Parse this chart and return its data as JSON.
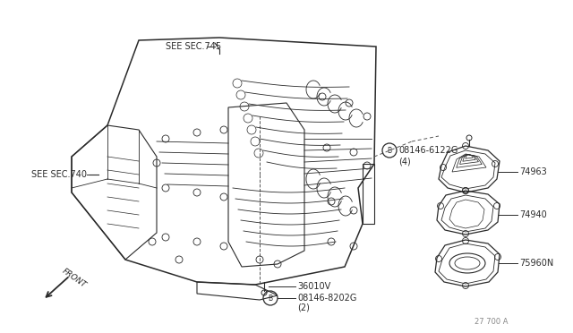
{
  "bg_color": "#ffffff",
  "line_color": "#2a2a2a",
  "labels": {
    "see_sec_745": "SEE SEC.745",
    "see_sec_740": "SEE SEC.740",
    "part_74963": "74963",
    "part_74940": "74940",
    "part_75960N": "75960N",
    "part_36010V": "36010V",
    "part_08146_8202G": "08146-8202G",
    "part_08146_6122G": "08146-6122G",
    "qty_4": "(4)",
    "qty_2": "(2)",
    "front": "FRONT",
    "part_num": "27 700 A"
  }
}
